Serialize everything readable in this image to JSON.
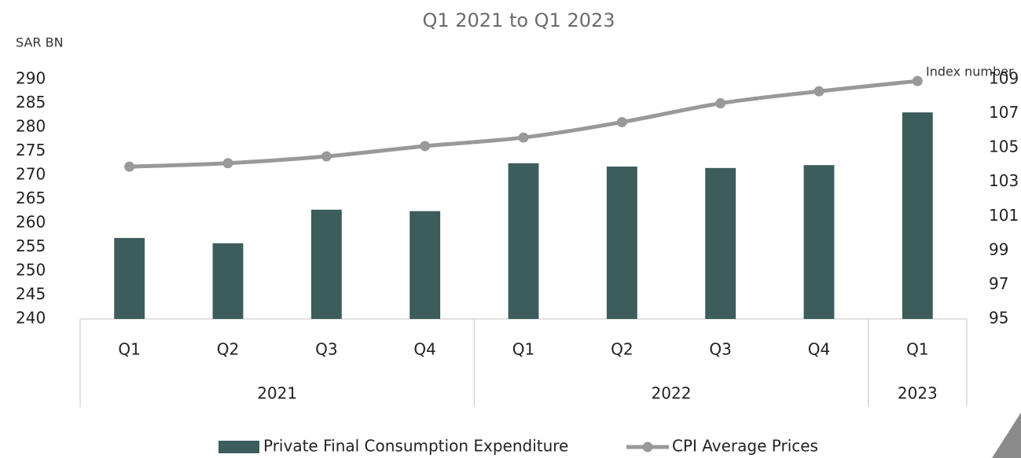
{
  "chart_data": {
    "type": "bar_line",
    "title": "Q1 2021 to Q1 2023",
    "y_label": "SAR BN",
    "y2_label": "Index number",
    "groups": [
      {
        "label": "2021",
        "categories": [
          "Q1",
          "Q2",
          "Q3",
          "Q4"
        ]
      },
      {
        "label": "2022",
        "categories": [
          "Q1",
          "Q2",
          "Q3",
          "Q4"
        ]
      },
      {
        "label": "2023",
        "categories": [
          "Q1"
        ]
      }
    ],
    "series": [
      {
        "name": "Private Final Consumption Expenditure",
        "type": "bar",
        "color": "#3d5c5c",
        "values": [
          256.9,
          255.8,
          262.8,
          262.5,
          272.5,
          271.8,
          271.5,
          272.1,
          283.1
        ]
      },
      {
        "name": "CPI Average Prices",
        "type": "line",
        "axis": "y2",
        "color": "#999999",
        "values": [
          103.9,
          104.1,
          104.5,
          105.1,
          105.6,
          106.5,
          107.6,
          108.3,
          108.9
        ]
      }
    ],
    "ylim": [
      240,
      290
    ],
    "yticks": [
      240,
      245,
      250,
      255,
      260,
      265,
      270,
      275,
      280,
      285,
      290
    ],
    "y2lim": [
      95,
      109
    ],
    "y2ticks": [
      95,
      97,
      99,
      101,
      103,
      105,
      107,
      109
    ],
    "legend": "bottom"
  }
}
